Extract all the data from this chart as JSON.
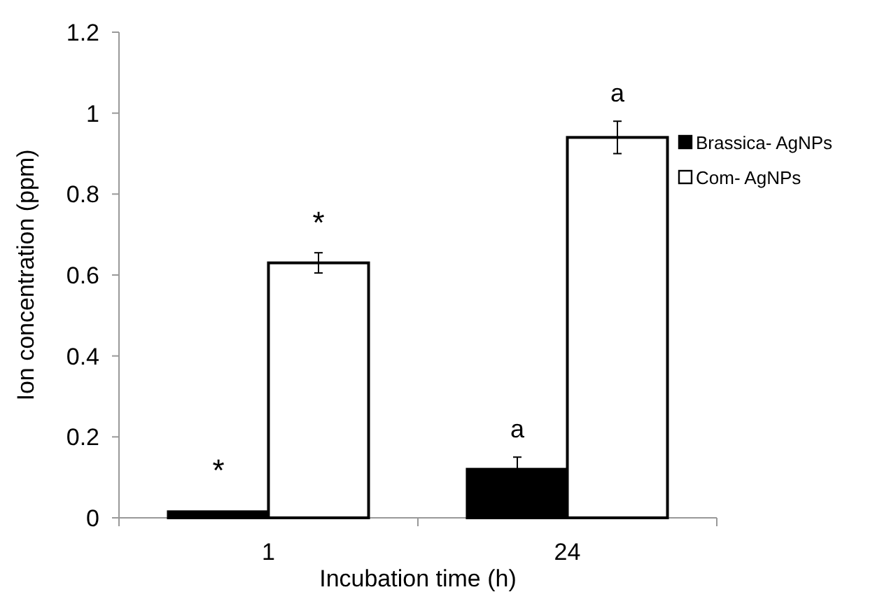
{
  "chart_data": {
    "type": "bar",
    "xlabel": "Incubation time (h)",
    "ylabel": "Ion concentration (ppm)",
    "categories": [
      "1",
      "24"
    ],
    "series": [
      {
        "name": "Brassica- AgNPs",
        "color": "#000000",
        "values": [
          0.015,
          0.12
        ],
        "errors": [
          null,
          0.03
        ]
      },
      {
        "name": "Com- AgNPs",
        "color": "#ffffff",
        "values": [
          0.63,
          0.94
        ],
        "errors": [
          0.025,
          0.04
        ]
      }
    ],
    "ylim": [
      0,
      1.2
    ],
    "yticks": [
      0,
      {
        "value": 0.2,
        "label": "0.2"
      },
      {
        "value": 0.4,
        "label": "0.4"
      },
      {
        "value": 0.6,
        "label": "0.6"
      },
      {
        "value": 0.8,
        "label": "0.8"
      },
      1,
      {
        "value": 1.2,
        "label": "1.2"
      }
    ],
    "legend": "right",
    "grid": false,
    "annotations": [
      "*",
      "*",
      "a",
      "a"
    ]
  }
}
